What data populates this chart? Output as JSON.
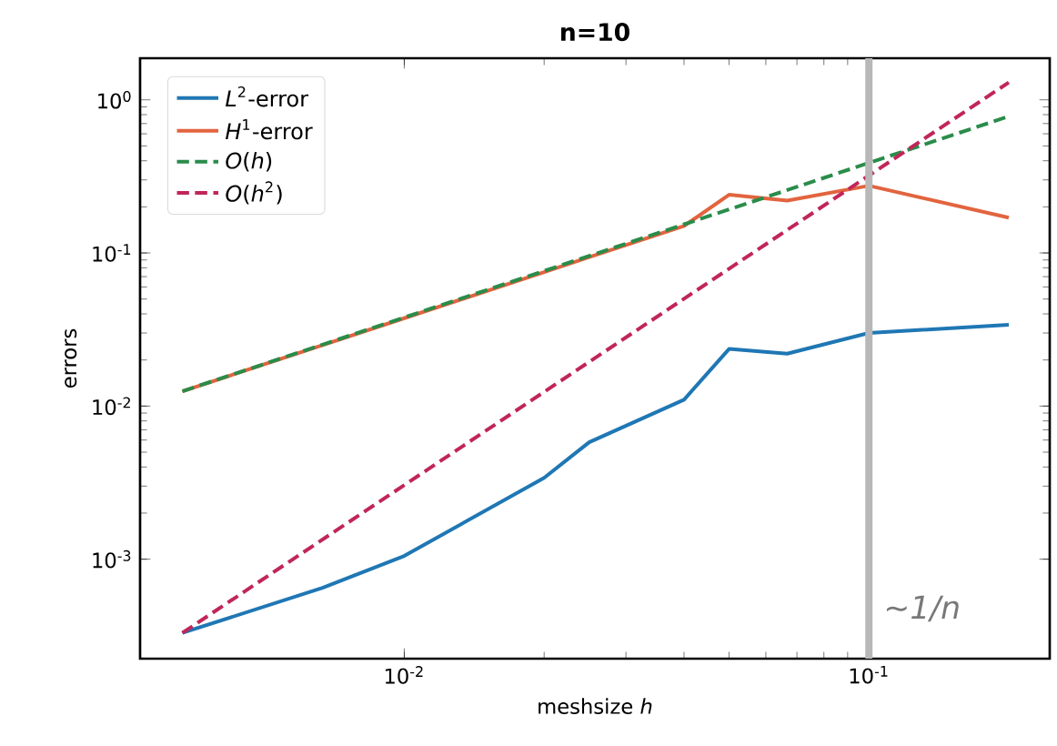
{
  "chart_data": {
    "type": "line",
    "title": "n=10",
    "xlabel": "meshsize *h*",
    "ylabel": "errors",
    "log": "xy",
    "grid": false,
    "legend": "top left",
    "xlim": [
      0.0027,
      0.245
    ],
    "ylim": [
      0.000224,
      1.87
    ],
    "xticks": [
      {
        "value": 0.01,
        "label": "10$^{-2}$"
      },
      {
        "value": 0.1,
        "label": "10$^{-1}$"
      }
    ],
    "yticks": [
      {
        "value": 0.001,
        "label": "10$^{-3}$"
      },
      {
        "value": 0.01,
        "label": "10$^{-2}$"
      },
      {
        "value": 0.1,
        "label": "10$^{-1}$"
      },
      {
        "value": 1,
        "label": "10$^{0}$"
      }
    ],
    "series": [
      {
        "name": "*L*$^{2}$-error",
        "color": "#1f77b4",
        "line_style": "solid",
        "x": [
          0.00333,
          0.00667,
          0.01,
          0.02,
          0.025,
          0.04,
          0.05,
          0.0667,
          0.1,
          0.2
        ],
        "values": [
          0.00033,
          0.00065,
          0.00105,
          0.0034,
          0.0058,
          0.011,
          0.0236,
          0.022,
          0.03,
          0.034
        ]
      },
      {
        "name": "*H*$^{1}$-error",
        "color": "#e2643f",
        "line_style": "solid",
        "x": [
          0.00333,
          0.00667,
          0.01,
          0.02,
          0.025,
          0.04,
          0.05,
          0.0667,
          0.1,
          0.2
        ],
        "values": [
          0.0125,
          0.025,
          0.0375,
          0.075,
          0.094,
          0.15,
          0.24,
          0.22,
          0.275,
          0.17
        ]
      },
      {
        "name": "*O*(*h*)",
        "color": "#2a8c4a",
        "line_style": "dashed",
        "x": [
          0.00333,
          0.2
        ],
        "values": [
          0.0125,
          0.78
        ]
      },
      {
        "name": "*O*(*h*$^{2}$)",
        "color": "#c0265a",
        "line_style": "dashed",
        "x": [
          0.00333,
          0.2
        ],
        "values": [
          0.00033,
          1.3
        ]
      }
    ],
    "ref_lines": [
      {
        "axis": "x",
        "value": 0.1,
        "label": "~1/n",
        "color": "#b8b8b8"
      }
    ]
  }
}
